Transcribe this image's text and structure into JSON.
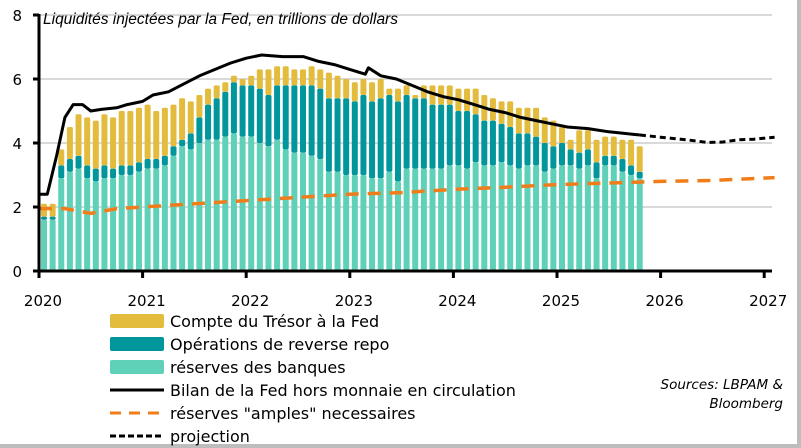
{
  "chart_data": {
    "type": "bar",
    "subtype": "stacked-bar-with-lines",
    "title": "Liquidités injectées par la Fed, en trillions de dollars",
    "xlabel": "",
    "ylabel": "",
    "ylim": [
      0,
      8
    ],
    "yticks": [
      "0",
      "2",
      "4",
      "6",
      "8"
    ],
    "xlim": [
      2020,
      2027.1
    ],
    "xticks": [
      "2020",
      "2021",
      "2022",
      "2023",
      "2024",
      "2025",
      "2026",
      "2027"
    ],
    "grid": true,
    "legend_position": "bottom-left",
    "start_month": "2020-01",
    "colors": {
      "tga": "#E3BC3E",
      "rrp": "#00969B",
      "reserves": "#5ED1B8",
      "balance": "#000000",
      "ample": "#F07D1A",
      "projection": "#000000"
    },
    "series": [
      {
        "name": "réserves des banques",
        "key": "reserves",
        "kind": "bar",
        "values": [
          1.6,
          1.6,
          2.9,
          3.1,
          3.2,
          2.9,
          2.8,
          2.9,
          2.9,
          3.0,
          3.0,
          3.1,
          3.2,
          3.2,
          3.3,
          3.6,
          3.9,
          3.8,
          4.0,
          4.1,
          4.1,
          4.2,
          4.3,
          4.2,
          4.2,
          4.0,
          3.9,
          4.1,
          3.8,
          3.7,
          3.7,
          3.6,
          3.5,
          3.1,
          3.1,
          3.0,
          3.0,
          3.0,
          2.9,
          2.9,
          3.1,
          2.8,
          3.2,
          3.2,
          3.2,
          3.2,
          3.2,
          3.3,
          3.3,
          3.2,
          3.4,
          3.3,
          3.3,
          3.4,
          3.3,
          3.2,
          3.3,
          3.3,
          3.1,
          3.2,
          3.3,
          3.3,
          3.2,
          3.3,
          2.9,
          3.3,
          3.3,
          3.1,
          3.0,
          2.9
        ],
        "rrp": true
      },
      {
        "name": "Opérations de reverse repo",
        "key": "rrp",
        "kind": "bar",
        "values": [
          0.1,
          0.1,
          0.4,
          0.4,
          0.4,
          0.4,
          0.4,
          0.4,
          0.3,
          0.3,
          0.3,
          0.3,
          0.3,
          0.3,
          0.3,
          0.3,
          0.2,
          0.5,
          0.8,
          1.1,
          1.3,
          1.4,
          1.6,
          1.6,
          1.6,
          1.7,
          1.6,
          1.7,
          2.0,
          2.1,
          2.1,
          2.2,
          2.2,
          2.3,
          2.3,
          2.4,
          2.3,
          2.5,
          2.4,
          2.5,
          2.4,
          2.5,
          2.3,
          2.2,
          2.2,
          2.0,
          2.0,
          1.9,
          1.7,
          1.8,
          1.5,
          1.4,
          1.4,
          1.2,
          1.2,
          1.1,
          1.0,
          0.9,
          0.9,
          0.7,
          0.7,
          0.5,
          0.5,
          0.5,
          0.5,
          0.3,
          0.3,
          0.4,
          0.3,
          0.2
        ],
        "rrp": true
      },
      {
        "name": "Compte du Trésor à la Fed",
        "key": "tga",
        "kind": "bar",
        "values": [
          0.4,
          0.4,
          0.5,
          1.0,
          1.3,
          1.5,
          1.5,
          1.6,
          1.6,
          1.7,
          1.7,
          1.7,
          1.7,
          1.5,
          1.5,
          1.3,
          1.3,
          1.0,
          0.7,
          0.5,
          0.4,
          0.3,
          0.2,
          0.2,
          0.3,
          0.6,
          0.8,
          0.6,
          0.6,
          0.5,
          0.5,
          0.6,
          0.6,
          0.8,
          0.7,
          0.6,
          0.6,
          0.5,
          0.6,
          0.6,
          0.2,
          0.4,
          0.3,
          0.1,
          0.4,
          0.6,
          0.6,
          0.6,
          0.7,
          0.7,
          0.8,
          0.8,
          0.7,
          0.7,
          0.8,
          0.8,
          0.8,
          0.9,
          0.8,
          0.8,
          0.5,
          0.3,
          0.7,
          0.6,
          0.7,
          0.6,
          0.6,
          0.6,
          0.8,
          0.8
        ]
      },
      {
        "name": "Bilan de la Fed hors monnaie en circulation",
        "key": "balance",
        "kind": "line",
        "style": "solid",
        "points": [
          [
            2020.0,
            2.4
          ],
          [
            2020.08,
            2.4
          ],
          [
            2020.17,
            3.6
          ],
          [
            2020.25,
            4.8
          ],
          [
            2020.33,
            5.2
          ],
          [
            2020.42,
            5.2
          ],
          [
            2020.5,
            5.0
          ],
          [
            2020.6,
            5.05
          ],
          [
            2020.75,
            5.1
          ],
          [
            2020.85,
            5.2
          ],
          [
            2021.0,
            5.3
          ],
          [
            2021.1,
            5.5
          ],
          [
            2021.25,
            5.6
          ],
          [
            2021.4,
            5.85
          ],
          [
            2021.55,
            6.1
          ],
          [
            2021.7,
            6.3
          ],
          [
            2021.85,
            6.5
          ],
          [
            2022.0,
            6.65
          ],
          [
            2022.15,
            6.75
          ],
          [
            2022.35,
            6.7
          ],
          [
            2022.55,
            6.7
          ],
          [
            2022.7,
            6.55
          ],
          [
            2022.85,
            6.45
          ],
          [
            2023.0,
            6.3
          ],
          [
            2023.15,
            6.15
          ],
          [
            2023.18,
            6.35
          ],
          [
            2023.3,
            6.1
          ],
          [
            2023.45,
            6.0
          ],
          [
            2023.6,
            5.8
          ],
          [
            2023.75,
            5.6
          ],
          [
            2023.9,
            5.45
          ],
          [
            2024.05,
            5.35
          ],
          [
            2024.2,
            5.2
          ],
          [
            2024.35,
            5.05
          ],
          [
            2024.5,
            4.95
          ],
          [
            2024.65,
            4.8
          ],
          [
            2024.8,
            4.7
          ],
          [
            2024.95,
            4.6
          ],
          [
            2025.1,
            4.5
          ],
          [
            2025.3,
            4.45
          ],
          [
            2025.5,
            4.35
          ],
          [
            2025.65,
            4.3
          ],
          [
            2025.8,
            4.25
          ]
        ]
      },
      {
        "name": "réserves \"amples\" necessaires",
        "key": "ample",
        "kind": "line",
        "style": "dashed",
        "points": [
          [
            2020.0,
            1.95
          ],
          [
            2020.25,
            1.95
          ],
          [
            2020.5,
            1.8
          ],
          [
            2020.75,
            1.95
          ],
          [
            2021.0,
            2.0
          ],
          [
            2021.5,
            2.1
          ],
          [
            2022.0,
            2.2
          ],
          [
            2022.5,
            2.3
          ],
          [
            2023.0,
            2.4
          ],
          [
            2023.5,
            2.45
          ],
          [
            2024.0,
            2.55
          ],
          [
            2024.5,
            2.62
          ],
          [
            2025.0,
            2.7
          ],
          [
            2025.5,
            2.75
          ],
          [
            2026.0,
            2.8
          ],
          [
            2026.5,
            2.83
          ],
          [
            2027.1,
            2.92
          ]
        ]
      },
      {
        "name": "projection",
        "key": "projection",
        "kind": "line",
        "style": "dotted",
        "points": [
          [
            2025.8,
            4.25
          ],
          [
            2026.0,
            4.18
          ],
          [
            2026.25,
            4.1
          ],
          [
            2026.45,
            4.02
          ],
          [
            2026.6,
            4.03
          ],
          [
            2026.75,
            4.1
          ],
          [
            2026.9,
            4.12
          ],
          [
            2027.1,
            4.18
          ]
        ]
      }
    ],
    "source": [
      "Sources: LBPAM &",
      "Bloomberg"
    ]
  },
  "legend": [
    {
      "key": "tga",
      "label": "Compte du Trésor à la Fed",
      "kind": "box"
    },
    {
      "key": "rrp",
      "label": "Opérations de reverse repo",
      "kind": "box"
    },
    {
      "key": "reserves",
      "label": "réserves des banques",
      "kind": "box"
    },
    {
      "key": "balance",
      "label": "Bilan de la Fed hors monnaie en circulation",
      "kind": "solid"
    },
    {
      "key": "ample",
      "label": "réserves \"amples\" necessaires",
      "kind": "dashed"
    },
    {
      "key": "projection",
      "label": "projection",
      "kind": "dotted"
    }
  ]
}
